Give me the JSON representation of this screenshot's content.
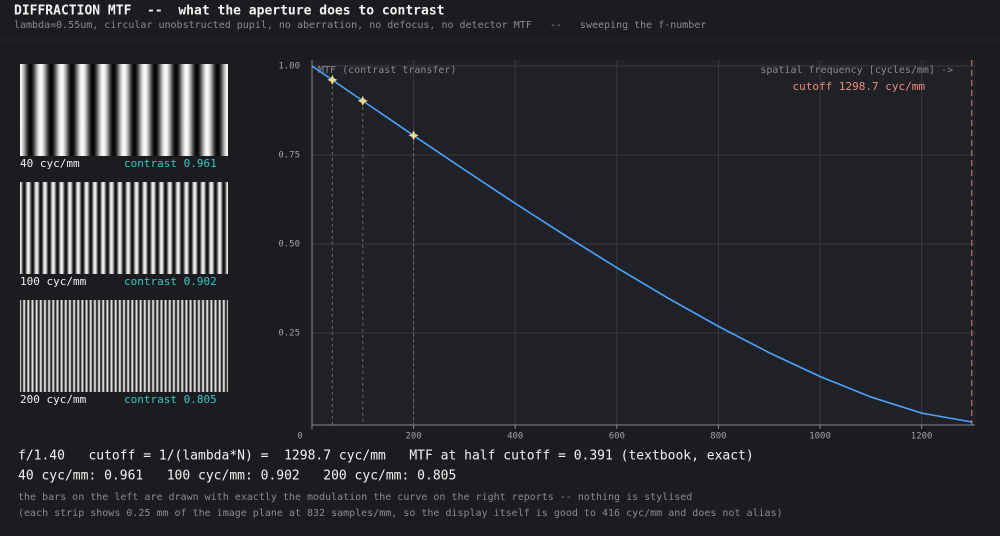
{
  "header": {
    "title": "DIFFRACTION MTF  --  what the aperture does to contrast",
    "subtitle": "lambda=0.55um, circular unobstructed pupil, no aberration, no defocus, no detector MTF   --   sweeping the f-number"
  },
  "strips": [
    {
      "frequency": 40,
      "frequency_label": "40 cyc/mm",
      "contrast": 0.961,
      "contrast_label": "contrast 0.961"
    },
    {
      "frequency": 100,
      "frequency_label": "100 cyc/mm",
      "contrast": 0.902,
      "contrast_label": "contrast 0.902"
    },
    {
      "frequency": 200,
      "frequency_label": "200 cyc/mm",
      "contrast": 0.805,
      "contrast_label": "contrast 0.805"
    }
  ],
  "chart_data": {
    "type": "line",
    "y_label": "MTF (contrast transfer)",
    "x_label": "spatial frequency [cycles/mm] ->",
    "cutoff": 1298.7,
    "cutoff_label": "cutoff 1298.7 cyc/mm",
    "x": [
      0,
      100,
      200,
      300,
      400,
      500,
      600,
      700,
      800,
      900,
      1000,
      1100,
      1200,
      1298.7
    ],
    "values": [
      1.0,
      0.9021,
      0.8047,
      0.7085,
      0.6141,
      0.5222,
      0.4335,
      0.3486,
      0.2686,
      0.1945,
      0.1278,
      0.0704,
      0.0249,
      0
    ],
    "color": "#4da3ff",
    "marker_color": "#f3d98a",
    "cutoff_color": "#e0887a",
    "xlim": [
      0,
      1305
    ],
    "ylim": [
      0,
      1.0
    ],
    "xticks": [
      0,
      200,
      400,
      600,
      800,
      1000,
      1200
    ],
    "yticks": [
      {
        "value": 0.25,
        "label": "0.25"
      },
      {
        "value": 0.5,
        "label": "0.50"
      },
      {
        "value": 0.75,
        "label": "0.75"
      },
      {
        "value": 1.0,
        "label": "1.00"
      }
    ],
    "grid": true
  },
  "footer": {
    "line1": "f/1.40   cutoff = 1/(lambda*N) =  1298.7 cyc/mm   MTF at half cutoff = 0.391 (textbook, exact)",
    "line2": "40 cyc/mm: 0.961   100 cyc/mm: 0.902   200 cyc/mm: 0.805",
    "note1": "the bars on the left are drawn with exactly the modulation the curve on the right reports -- nothing is stylised",
    "note2": "(each strip shows 0.25 mm of the image plane at 832 samples/mm, so the display itself is good to 416 cyc/mm and does not alias)"
  }
}
